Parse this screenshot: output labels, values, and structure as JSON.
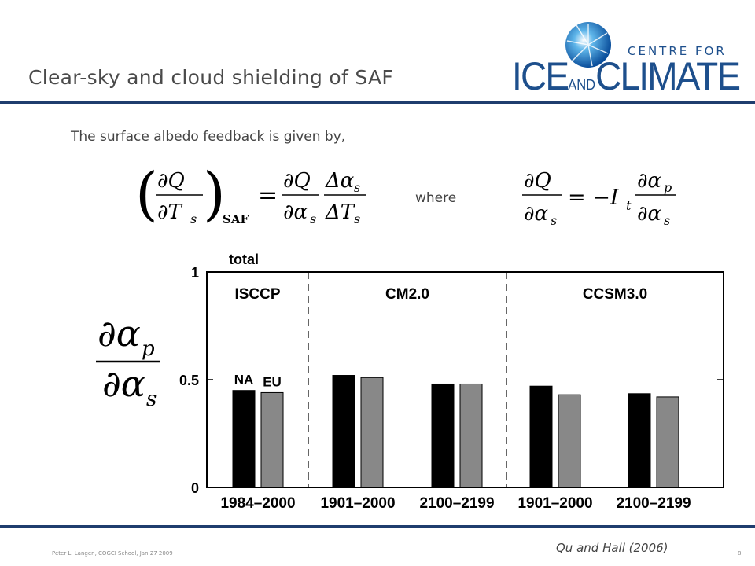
{
  "slide": {
    "title": "Clear-sky and cloud shielding of SAF",
    "intro": "The surface albedo feedback is given by,",
    "where": "where",
    "footer_left": "Peter L. Langen, COGCI School, Jan 27 2009",
    "footer_right": "8",
    "citation": "Qu and Hall (2006)",
    "logo_top": "CENTRE FOR",
    "logo_ice": "ICE",
    "logo_and": "AND",
    "logo_climate": "CLIMATE",
    "brand_color": "#1d4f8c"
  },
  "equations": {
    "lhs_sub": "SAF",
    "dQ": "∂Q",
    "dTs": "∂T",
    "s": "s",
    "das": "∂α",
    "Das": "Δα",
    "DTs": "ΔT",
    "minus_It": "= −I",
    "t": "t",
    "dap": "∂α",
    "p": "p",
    "equals": "="
  },
  "chart_data": {
    "type": "bar",
    "title": "total",
    "ylim": [
      0,
      1
    ],
    "yticks": [
      "0",
      "0.5",
      "1"
    ],
    "groups": [
      "ISCCP",
      "CM2.0",
      "CCSM3.0"
    ],
    "categories": [
      "1984–2000",
      "1901–2000",
      "2100–2199",
      "1901–2000",
      "2100–2199"
    ],
    "series": [
      {
        "name": "NA",
        "color": "#000000",
        "values": [
          0.45,
          0.52,
          0.48,
          0.47,
          0.435
        ]
      },
      {
        "name": "EU",
        "color": "#888888",
        "values": [
          0.44,
          0.51,
          0.48,
          0.43,
          0.42
        ]
      }
    ],
    "ylabel_numerator": "∂α",
    "ylabel_numerator_sub": "p",
    "ylabel_denominator": "∂α",
    "ylabel_denominator_sub": "s",
    "grid": false
  }
}
